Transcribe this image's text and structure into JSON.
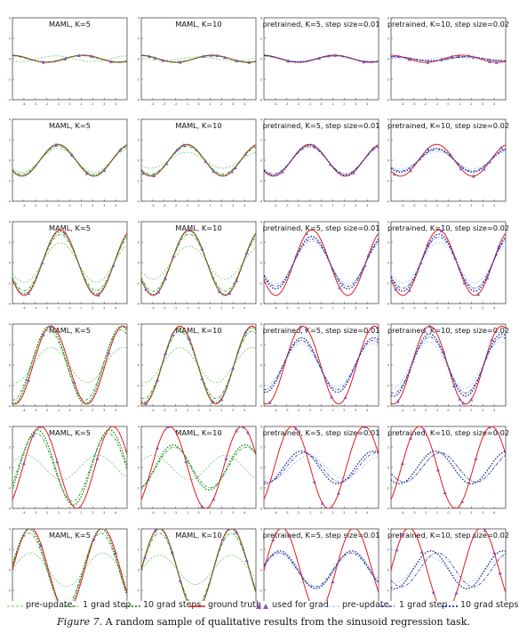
{
  "colors": {
    "ground_truth": "#e41a1c",
    "maml_pre": "#8fd18f",
    "maml_post": "#1a8a1a",
    "pre_pre": "#b8ccef",
    "pre_post": "#1f2f9a",
    "points": "#8a55b0"
  },
  "legend": {
    "left": [
      {
        "label": "pre-update",
        "style": "pre",
        "color": "#8fd18f"
      },
      {
        "label": "1 grad step",
        "style": "one",
        "color": "#1a8a1a"
      },
      {
        "label": "10 grad steps",
        "style": "ten",
        "color": "#1a8a1a"
      },
      {
        "label": "ground truth",
        "style": "gt",
        "color": "#e41a1c"
      },
      {
        "label": "used for grad",
        "style": "pts",
        "color": "#8a55b0"
      }
    ],
    "right": [
      {
        "label": "pre-update",
        "style": "pre",
        "color": "#b8ccef"
      },
      {
        "label": "1 grad step",
        "style": "one",
        "color": "#1f2f9a"
      },
      {
        "label": "10 grad steps",
        "style": "ten",
        "color": "#1f2f9a"
      }
    ]
  },
  "caption": {
    "figure_label": "Figure 7.",
    "text": "A random sample of qualitative results from the sinusoid regression task."
  },
  "column_titles": [
    "MAML, K=5",
    "MAML, K=10",
    "pretrained, K=5, step size=0.01",
    "pretrained, K=10, step size=0.02"
  ],
  "chart_data": {
    "type": "line",
    "grid": "4 columns x 6 rows",
    "x_range": [
      -5,
      5
    ],
    "y_range": [
      -4,
      4
    ],
    "x_ticks": [
      -4,
      -3,
      -2,
      -1,
      0,
      1,
      2,
      3,
      4
    ],
    "y_ticks": [
      -4,
      -2,
      0,
      2,
      4
    ],
    "rows": [
      {
        "ground_truth": {
          "amplitude": 0.35,
          "phase": 0.4
        },
        "panels": [
          {
            "title": "MAML, K=5",
            "post_amp": 0.95,
            "post_phase": 0.1,
            "pre_amp": 0.8,
            "pre_phase": 2.4,
            "points_x": [
              -2.3,
              -0.4,
              0.8,
              1.9,
              3.6
            ]
          },
          {
            "title": "MAML, K=10",
            "post_amp": 0.95,
            "post_phase": 0.0,
            "pre_amp": 0.5,
            "pre_phase": 1.2,
            "points_x": [
              -4.3,
              -3.8,
              -3.1,
              -1.6,
              0.4,
              1.1,
              1.6,
              2.3,
              3.3,
              4.4
            ]
          },
          {
            "title": "pretrained, K=5, step size=0.01",
            "post_amp": 0.92,
            "post_phase": 0.0,
            "pre_amp": 0.65,
            "pre_phase": 0.2,
            "points_x": [
              -2.9,
              -0.2,
              0.6,
              1.2,
              3.7
            ]
          },
          {
            "title": "pretrained, K=10, step size=0.02",
            "post_amp": 0.6,
            "post_phase": -0.4,
            "pre_amp": 0.45,
            "pre_phase": 0.8,
            "points_x": [
              -4.3,
              -3.4,
              -1.8,
              -0.6,
              0.3,
              0.9,
              1.8,
              2.2,
              3.6,
              4.2
            ]
          }
        ]
      },
      {
        "ground_truth": {
          "amplitude": 1.55,
          "phase": 2.6
        },
        "panels": [
          {
            "title": "MAML, K=5",
            "post_amp": 0.98,
            "post_phase": 0.0,
            "pre_amp": 0.75,
            "pre_phase": 0.0,
            "points_x": [
              -1.2,
              0.2,
              1.5,
              3.0,
              4.4
            ]
          },
          {
            "title": "MAML, K=10",
            "post_amp": 0.96,
            "post_phase": 0.0,
            "pre_amp": 0.5,
            "pre_phase": 0.0,
            "points_x": [
              -4.8,
              -3.9,
              -2.8,
              -1.9,
              -1.3,
              0.6,
              1.3,
              2.9,
              3.2,
              4.1
            ]
          },
          {
            "title": "pretrained, K=5, step size=0.01",
            "post_amp": 0.95,
            "post_phase": 0.0,
            "pre_amp": 0.85,
            "pre_phase": 0.0,
            "points_x": [
              -3.4,
              -0.6,
              0.8,
              2.8,
              4.5
            ]
          },
          {
            "title": "pretrained, K=10, step size=0.02",
            "post_amp": 0.75,
            "post_phase": 0.0,
            "pre_amp": 0.55,
            "pre_phase": 0.0,
            "points_x": [
              -4.7,
              -3.3,
              -2.5,
              -1.8,
              0.2,
              1.1,
              2.2,
              3.1,
              3.6,
              4.6
            ]
          }
        ]
      },
      {
        "ground_truth": {
          "amplitude": 3.2,
          "phase": 2.4
        },
        "panels": [
          {
            "title": "MAML, K=5",
            "post_amp": 0.95,
            "post_phase": 0.0,
            "pre_amp": 0.6,
            "pre_phase": 0.0,
            "points_x": [
              -3.6,
              -2.4,
              -0.4,
              2.5,
              3.8
            ]
          },
          {
            "title": "MAML, K=10",
            "post_amp": 0.97,
            "post_phase": 0.0,
            "pre_amp": 0.5,
            "pre_phase": 0.0,
            "points_x": [
              -4.6,
              -3.5,
              -2.9,
              -2.2,
              -0.8,
              0.3,
              1.8,
              2.7,
              3.3,
              4.2
            ]
          },
          {
            "title": "pretrained, K=5, step size=0.01",
            "post_amp": 0.8,
            "post_phase": 0.0,
            "pre_amp": 0.65,
            "pre_phase": 0.0,
            "points_x": [
              -2.2,
              -1.3,
              1.6,
              3.8,
              4.1
            ]
          },
          {
            "title": "pretrained, K=10, step size=0.02",
            "post_amp": 0.87,
            "post_phase": 0.0,
            "pre_amp": 0.62,
            "pre_phase": 0.0,
            "points_x": [
              -4.6,
              -3.4,
              -2.4,
              -1.8,
              -0.6,
              0.6,
              1.4,
              2.6,
              3.4,
              4.4
            ]
          }
        ]
      },
      {
        "ground_truth": {
          "amplitude": 3.8,
          "phase": 3.2
        },
        "panels": [
          {
            "title": "MAML, K=5",
            "post_amp": 1.0,
            "post_phase": 0.15,
            "pre_amp": 0.45,
            "pre_phase": 0.0,
            "points_x": [
              -3.6,
              -2.3,
              -1.6,
              0.4,
              3.4
            ]
          },
          {
            "title": "MAML, K=10",
            "post_amp": 0.96,
            "post_phase": 0.0,
            "pre_amp": 0.45,
            "pre_phase": 0.0,
            "points_x": [
              -4.6,
              -3.6,
              -2.9,
              -2.3,
              -0.8,
              0.3,
              1.2,
              2.0,
              3.0,
              4.1
            ]
          },
          {
            "title": "pretrained, K=5, step size=0.01",
            "post_amp": 0.7,
            "post_phase": 0.1,
            "pre_amp": 0.55,
            "pre_phase": 0.15,
            "points_x": [
              -4.5,
              -1.8,
              -1.3,
              0.9,
              2.1
            ]
          },
          {
            "title": "pretrained, K=10, step size=0.02",
            "post_amp": 0.8,
            "post_phase": 0.0,
            "pre_amp": 0.6,
            "pre_phase": 0.1,
            "points_x": [
              -4.4,
              -3.1,
              -2.1,
              -1.6,
              -0.4,
              0.5,
              1.0,
              1.3,
              2.0,
              3.8
            ]
          }
        ]
      },
      {
        "ground_truth": {
          "amplitude": 4.0,
          "phase": 4.1
        },
        "panels": [
          {
            "title": "MAML, K=5",
            "post_amp": 0.92,
            "post_phase": 0.3,
            "pre_amp": 0.3,
            "pre_phase": 1.3,
            "points_x": [
              -4.0,
              -3.2,
              -2.6,
              -1.1,
              2.4
            ]
          },
          {
            "title": "MAML, K=10",
            "post_amp": 0.55,
            "post_phase": -0.3,
            "pre_amp": 0.3,
            "pre_phase": 1.4,
            "points_x": [
              -4.4,
              -3.6,
              -2.6,
              -1.1,
              0.3,
              1.3,
              2.4,
              3.3,
              3.9,
              4.3
            ]
          },
          {
            "title": "pretrained, K=5, step size=0.01",
            "post_amp": 0.4,
            "post_phase": -0.8,
            "pre_amp": 0.28,
            "pre_phase": -1.4,
            "points_x": [
              -2.2,
              -0.6,
              0.1,
              1.5,
              3.8
            ]
          },
          {
            "title": "pretrained, K=10, step size=0.02",
            "post_amp": 0.4,
            "post_phase": -1.4,
            "pre_amp": 0.35,
            "pre_phase": -1.8,
            "points_x": [
              -4.0,
              -3.3,
              -2.1,
              -0.9,
              -0.3,
              0.6,
              1.2,
              2.4,
              3.6,
              4.3
            ]
          }
        ]
      },
      {
        "ground_truth": {
          "amplitude": 4.1,
          "phase": 5.0
        },
        "panels": [
          {
            "title": "MAML, K=5",
            "post_amp": 0.97,
            "post_phase": 0.1,
            "pre_amp": 0.4,
            "pre_phase": 0.0,
            "points_x": [
              -3.3,
              -2.5,
              -0.6,
              2.1,
              4.0
            ]
          },
          {
            "title": "MAML, K=10",
            "post_amp": 0.97,
            "post_phase": 0.0,
            "pre_amp": 0.35,
            "pre_phase": 0.0,
            "points_x": [
              -4.7,
              -3.8,
              -2.3,
              -1.6,
              -0.6,
              0.4,
              2.1,
              2.6,
              3.3,
              4.2
            ]
          },
          {
            "title": "pretrained, K=5, step size=0.01",
            "post_amp": 0.45,
            "post_phase": 0.2,
            "pre_amp": 0.4,
            "pre_phase": 0.1,
            "points_x": [
              -4.2,
              -2.8,
              -0.6,
              1.0,
              2.8
            ]
          },
          {
            "title": "pretrained, K=10, step size=0.02",
            "post_amp": 0.45,
            "post_phase": -1.9,
            "pre_amp": 0.3,
            "pre_phase": -1.9,
            "points_x": [
              -4.5,
              -4.0,
              -2.3,
              -1.3,
              -0.7,
              0.7,
              2.2,
              3.2,
              4.0,
              4.5
            ]
          }
        ]
      }
    ]
  }
}
